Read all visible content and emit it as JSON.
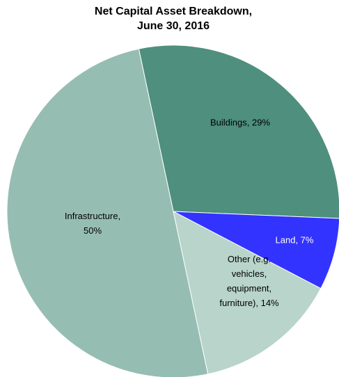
{
  "chart_data": {
    "type": "pie",
    "title": [
      "Net Capital Asset Breakdown,",
      "June 30, 2016"
    ],
    "categories": [
      [
        "Buildings, 29%"
      ],
      [
        "Land, 7%"
      ],
      [
        "Other (e.g.",
        "vehicles,",
        "equipment,",
        "furniture), 14%"
      ],
      [
        "Infrastructure,",
        "50%"
      ]
    ],
    "values": [
      29,
      7,
      14,
      50
    ],
    "colors": [
      "#4e8f7d",
      "#3333ff",
      "#b8d4cb",
      "#96bdb2"
    ],
    "label_colors": [
      "#000000",
      "#ffffff",
      "#000000",
      "#000000"
    ]
  }
}
